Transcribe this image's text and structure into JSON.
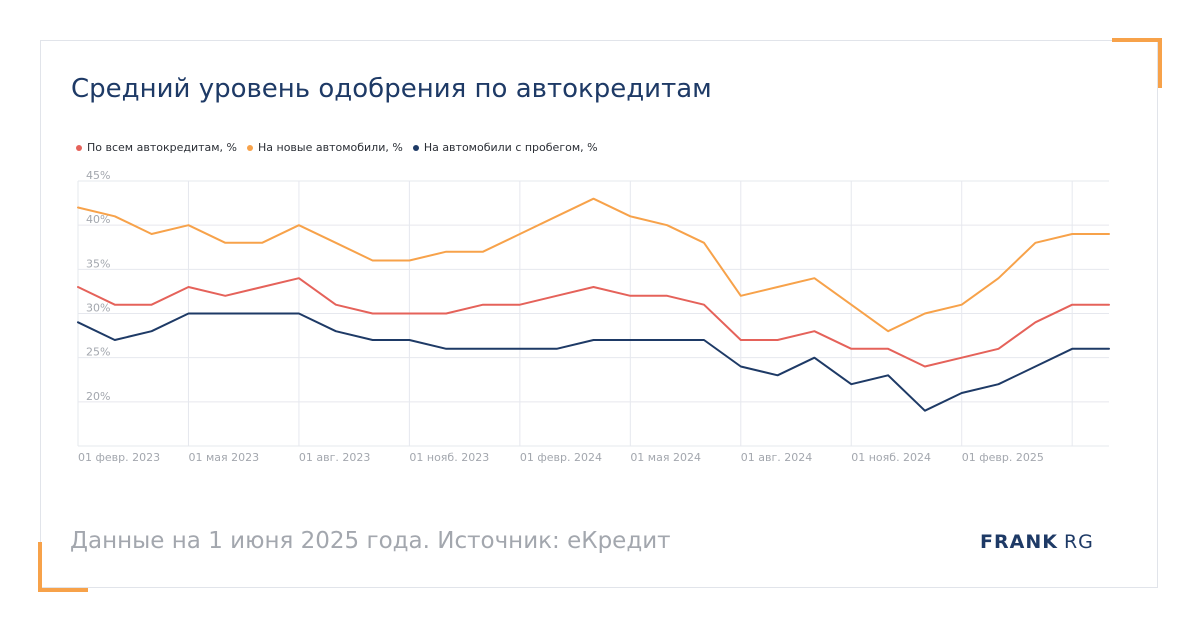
{
  "title": "Средний уровень одобрения по автокредитам",
  "footer_note": "Данные на 1 июня 2025 года. Источник: еКредит",
  "logo": {
    "bold": "FRANK",
    "light": "RG"
  },
  "colors": {
    "accent": "#f7a24a",
    "all": "#e5625a",
    "new": "#f7a24a",
    "used": "#1e3a66"
  },
  "chart_data": {
    "type": "line",
    "title": "Средний уровень одобрения по автокредитам",
    "ylim": [
      15,
      45
    ],
    "y_ticks": [
      "45%",
      "40%",
      "35%",
      "30%",
      "25%",
      "20%"
    ],
    "y_tick_values": [
      45,
      40,
      35,
      30,
      25,
      20
    ],
    "x_tick_labels": [
      "01 февр. 2023",
      "01 мая 2023",
      "01 авг. 2023",
      "01 нояб. 2023",
      "01 февр. 2024",
      "01 мая 2024",
      "01 авг. 2024",
      "01 нояб. 2024",
      "01 февр. 2025"
    ],
    "x_tick_indices": [
      0,
      3,
      6,
      9,
      12,
      15,
      18,
      21,
      24
    ],
    "x": [
      "2023-02-01",
      "2023-03-01",
      "2023-04-01",
      "2023-05-01",
      "2023-06-01",
      "2023-07-01",
      "2023-08-01",
      "2023-09-01",
      "2023-10-01",
      "2023-11-01",
      "2023-12-01",
      "2024-01-01",
      "2024-02-01",
      "2024-03-01",
      "2024-04-01",
      "2024-05-01",
      "2024-06-01",
      "2024-07-01",
      "2024-08-01",
      "2024-09-01",
      "2024-10-01",
      "2024-11-01",
      "2024-12-01",
      "2025-01-01",
      "2025-02-01",
      "2025-03-01",
      "2025-04-01",
      "2025-05-01",
      "2025-06-01"
    ],
    "series": [
      {
        "name": "По всем автокредитам, %",
        "color": "#e5625a",
        "values": [
          33,
          31,
          31,
          33,
          32,
          33,
          34,
          31,
          30,
          30,
          30,
          31,
          31,
          32,
          33,
          32,
          32,
          31,
          27,
          27,
          28,
          26,
          26,
          24,
          25,
          26,
          29,
          31,
          31
        ]
      },
      {
        "name": "На новые автомобили, %",
        "color": "#f7a24a",
        "values": [
          42,
          41,
          39,
          40,
          38,
          38,
          40,
          38,
          36,
          36,
          37,
          37,
          39,
          41,
          43,
          41,
          40,
          38,
          32,
          33,
          34,
          31,
          28,
          30,
          31,
          34,
          38,
          39,
          39
        ]
      },
      {
        "name": "На автомобили с пробегом, %",
        "color": "#1e3a66",
        "values": [
          29,
          27,
          28,
          30,
          30,
          30,
          30,
          28,
          27,
          27,
          26,
          26,
          26,
          26,
          27,
          27,
          27,
          27,
          24,
          23,
          25,
          22,
          23,
          19,
          21,
          22,
          24,
          26,
          26
        ]
      }
    ],
    "grid": true,
    "legend_position": "top-left"
  }
}
